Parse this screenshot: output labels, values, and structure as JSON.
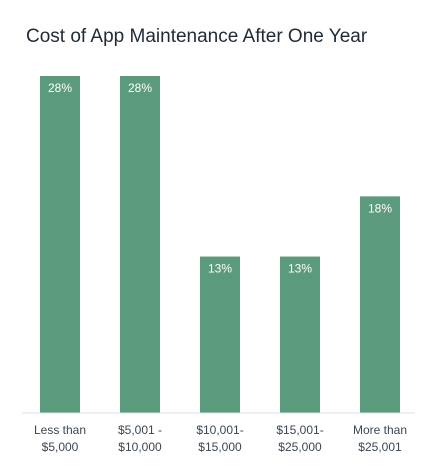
{
  "chart_data": {
    "type": "bar",
    "title": "Cost of App Maintenance After One Year",
    "categories": [
      [
        "Less than",
        "$5,000"
      ],
      [
        "$5,001 -",
        "$10,000"
      ],
      [
        "$10,001-",
        "$15,000"
      ],
      [
        "$15,001-",
        "$25,000"
      ],
      [
        "More than",
        "$25,001"
      ]
    ],
    "values": [
      28,
      28,
      13,
      13,
      18
    ],
    "data_labels": [
      "28%",
      "28%",
      "13%",
      "13%",
      "18%"
    ],
    "xlabel": "",
    "ylabel": "",
    "ylim": [
      0,
      28
    ],
    "grid": false,
    "legend": "none",
    "colors": {
      "bar": "#5b9a7d",
      "title": "#1f2a36",
      "tick": "#3b4652",
      "axis": "#dcdfe2",
      "data_label": "#ffffff"
    }
  }
}
